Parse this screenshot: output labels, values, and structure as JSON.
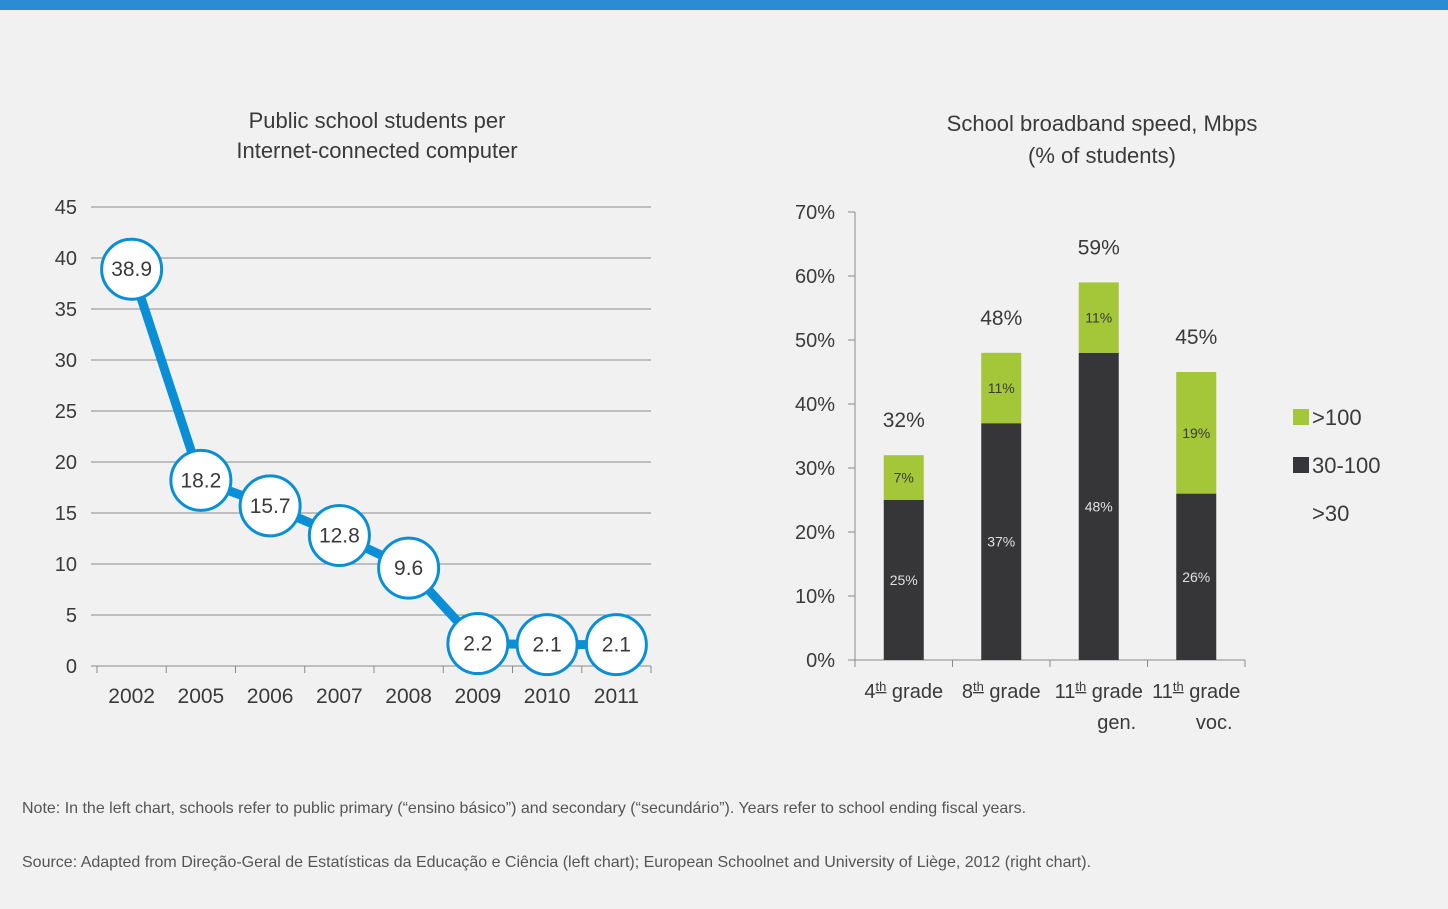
{
  "chart_data": [
    {
      "type": "line",
      "title_lines": [
        "Public school students per",
        "Internet-connected computer"
      ],
      "categories": [
        "2002",
        "2005",
        "2006",
        "2007",
        "2008",
        "2009",
        "2010",
        "2011"
      ],
      "values": [
        38.9,
        18.2,
        15.7,
        12.8,
        9.6,
        2.2,
        2.1,
        2.1
      ],
      "value_labels": [
        "38.9",
        "18.2",
        "15.7",
        "12.8",
        "9.6",
        "2.2",
        "2.1",
        "2.1"
      ],
      "y_ticks": [
        "0",
        "5",
        "10",
        "15",
        "20",
        "25",
        "30",
        "35",
        "40",
        "45"
      ],
      "ylim": [
        0,
        45
      ],
      "grid": true,
      "line_color": "#0a8fd6"
    },
    {
      "type": "bar",
      "stacked": true,
      "title_lines": [
        "School broadband speed, Mbps",
        "(% of students)"
      ],
      "categories": [
        "4th grade",
        "8th grade",
        "11th grade gen.",
        "11th grade voc."
      ],
      "category_labels": [
        {
          "num": "4",
          "sup": "th",
          "text": " grade",
          "line2": ""
        },
        {
          "num": "8",
          "sup": "th",
          "text": " grade",
          "line2": ""
        },
        {
          "num": "11",
          "sup": "th",
          "text": " grade",
          "line2": "gen."
        },
        {
          "num": "11",
          "sup": "th",
          "text": " grade",
          "line2": "voc."
        }
      ],
      "series": [
        {
          "name": "30-100",
          "values": [
            25,
            37,
            48,
            26
          ],
          "labels": [
            "25%",
            "37%",
            "48%",
            "26%"
          ],
          "color": "#363638"
        },
        {
          "name": ">100",
          "values": [
            7,
            11,
            11,
            19
          ],
          "labels": [
            "7%",
            "11%",
            "11%",
            "19%"
          ],
          "color": "#a4c639"
        }
      ],
      "totals": [
        "32%",
        "48%",
        "59%",
        "45%"
      ],
      "total_values": [
        32,
        48,
        59,
        45
      ],
      "y_ticks": [
        "0%",
        "10%",
        "20%",
        "30%",
        "40%",
        "50%",
        "60%",
        "70%"
      ],
      "ylim": [
        0,
        70
      ],
      "legend": [
        {
          "label": ">100",
          "color": "#a4c639"
        },
        {
          "label": "30-100",
          "color": "#363638"
        },
        {
          "label": ">30",
          "color": ""
        }
      ],
      "legend_position": "right"
    }
  ],
  "note": "Note: In the left chart, schools refer to public primary (“ensino básico”) and secondary (“secundário”). Years refer to school ending fiscal years.",
  "source": "Source: Adapted from Direção-Geral de Estatísticas da Educação e Ciência (left chart); European Schoolnet and University of Liège, 2012 (right chart)."
}
